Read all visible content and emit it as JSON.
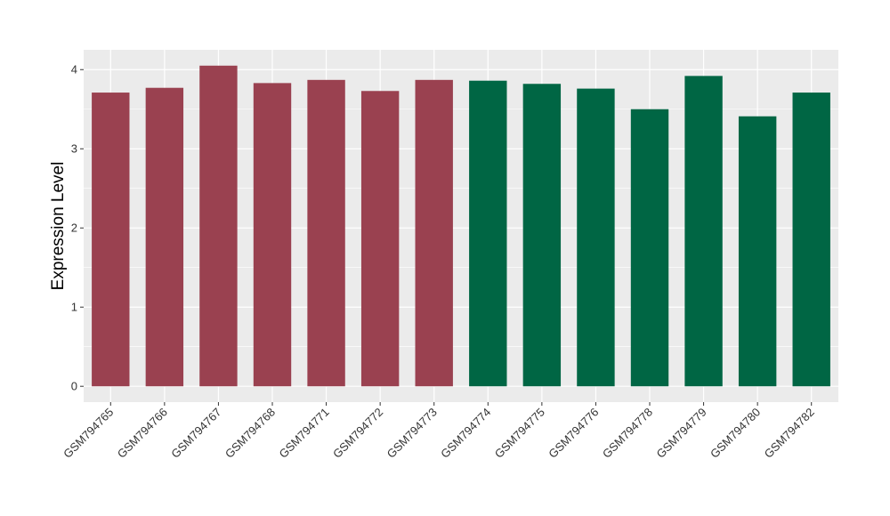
{
  "chart_data": {
    "type": "bar",
    "title": "",
    "xlabel": "",
    "ylabel": "Expression Level",
    "ylim": [
      -0.2,
      4.25
    ],
    "yticks": [
      0,
      1,
      2,
      3,
      4
    ],
    "grid": true,
    "legend": "none",
    "categories": [
      "GSM794765",
      "GSM794766",
      "GSM794767",
      "GSM794768",
      "GSM794771",
      "GSM794772",
      "GSM794773",
      "GSM794774",
      "GSM794775",
      "GSM794776",
      "GSM794778",
      "GSM794779",
      "GSM794780",
      "GSM794782"
    ],
    "values": [
      3.71,
      3.77,
      4.05,
      3.83,
      3.87,
      3.73,
      3.87,
      3.86,
      3.82,
      3.76,
      3.5,
      3.92,
      3.41,
      3.71
    ],
    "bar_colors": [
      "#9a4150",
      "#9a4150",
      "#9a4150",
      "#9a4150",
      "#9a4150",
      "#9a4150",
      "#9a4150",
      "#006644",
      "#006644",
      "#006644",
      "#006644",
      "#006644",
      "#006644",
      "#006644"
    ],
    "panel_background": "#ebebeb",
    "gridline_color": "#ffffff"
  }
}
